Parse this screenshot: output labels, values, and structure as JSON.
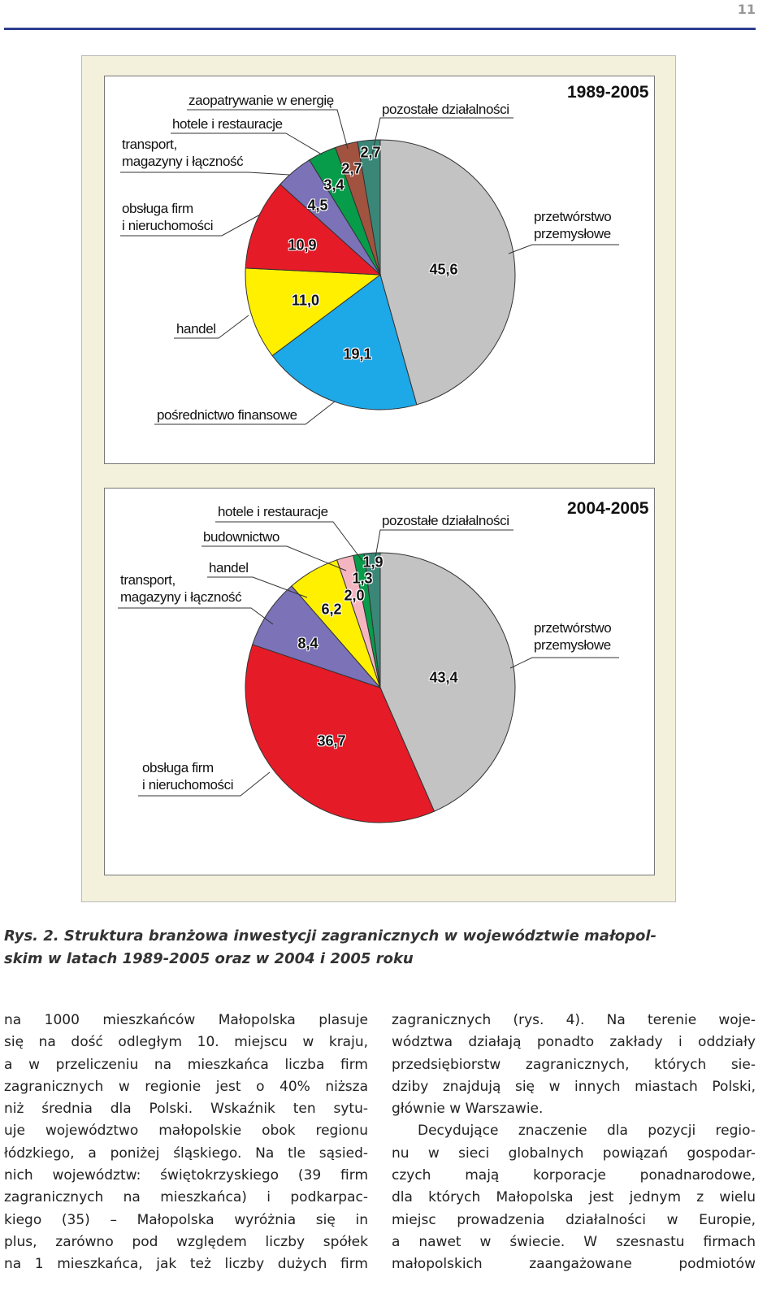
{
  "page_number": "11",
  "chart_data": [
    {
      "type": "pie",
      "title": "1989-2005",
      "categories": [
        "przetwórstwo\nprzemysłowe",
        "pośrednictwo finansowe",
        "handel",
        "obsługa firm\ni nieruchomości",
        "transport,\nmagazyny i łączność",
        "hotele i restauracje",
        "zaopatrywanie w energię",
        "pozostałe działalności"
      ],
      "values": [
        45.6,
        19.1,
        11.0,
        10.9,
        4.5,
        3.4,
        2.7,
        2.7
      ],
      "value_labels": [
        "45,6",
        "19,1",
        "11,0",
        "10,9",
        "4,5",
        "3,4",
        "2,7",
        "2,7"
      ],
      "colors": [
        "#c3c3c3",
        "#1da8e8",
        "#fff000",
        "#e51b27",
        "#7b72b8",
        "#079c4a",
        "#a1533f",
        "#3a8778"
      ]
    },
    {
      "type": "pie",
      "title": "2004-2005",
      "categories": [
        "przetwórstwo\nprzemysłowe",
        "obsługa firm\ni nieruchomości",
        "transport,\nmagazyny i łączność",
        "handel",
        "budownictwo",
        "hotele i restauracje",
        "pozostałe działalności"
      ],
      "values": [
        43.4,
        36.7,
        8.4,
        6.2,
        2.0,
        1.3,
        1.9
      ],
      "value_labels": [
        "43,4",
        "36,7",
        "8,4",
        "6,2",
        "2,0",
        "1,3",
        "1,9"
      ],
      "colors": [
        "#c3c3c3",
        "#e51b27",
        "#7b72b8",
        "#fff000",
        "#f5b5c0",
        "#079c4a",
        "#3a8778"
      ]
    }
  ],
  "caption": [
    "Rys. 2. Struktura branżowa inwestycji zagranicznych w województwie małopol-",
    "skim w latach 1989-2005 oraz w 2004 i 2005 roku"
  ],
  "columns": [
    [
      [
        "na 1000 mieszkańców Małopolska plasuje",
        "się na dość odległym 10. miejscu w kraju,",
        "a w przeliczeniu na mieszkańca liczba firm",
        "zagranicznych w regionie jest o 40% niższa",
        "niż średnia dla Polski. Wskaźnik ten sytu-",
        "uje województwo małopolskie obok regionu",
        "łódzkiego, a poniżej śląskiego. Na tle sąsied-",
        "nich województw: świętokrzyskiego (39 firm",
        "zagranicznych na mieszkańca) i podkarpac-",
        "kiego (35) – Małopolska wyróżnia się in",
        "plus, zarówno pod względem liczby spółek",
        "na 1 mieszkańca, jak też liczby dużych firm"
      ]
    ],
    [
      [
        "zagranicznych (rys. 4). Na terenie woje-",
        "wództwa działają ponadto zakłady i oddziały",
        "przedsiębiorstw zagranicznych, których sie-",
        "dziby znajdują się w innych miastach Polski,",
        "głównie w Warszawie."
      ],
      [
        "Decydujące znaczenie dla pozycji regio-",
        "nu w sieci globalnych powiązań gospodar-",
        "czych mają korporacje ponadnarodowe,",
        "dla których Małopolska jest jednym z wielu",
        "miejsc prowadzenia działalności w Europie,",
        "a nawet w świecie. W szesnastu firmach",
        "małopolskich zaangażowane podmiotów"
      ]
    ]
  ]
}
